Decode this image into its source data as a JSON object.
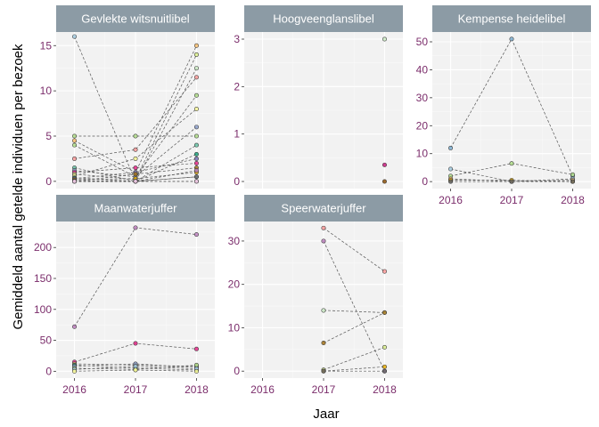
{
  "chart_data": {
    "type": "scatter",
    "xlabel": "Jaar",
    "ylabel": "Gemiddeld aantal getelde individuen per bezoek",
    "x_ticks": [
      "2016",
      "2017",
      "2018"
    ],
    "style": {
      "panel_bg": "#f2f2f2",
      "strip_bg": "#8c9ba5",
      "grid_major": "#ffffff",
      "grid_minor": "#fafafa",
      "tick_color": "#7b2d6b",
      "line_color": "#555555"
    },
    "panels": [
      {
        "title": "Gevlekte witsnuitlibel",
        "ylim": [
          -0.8,
          16.5
        ],
        "y_ticks": [
          0,
          5,
          10,
          15
        ],
        "series": [
          {
            "color": "#a6cee3",
            "points": [
              [
                2016,
                16
              ],
              [
                2017,
                0
              ],
              [
                2018,
                0.5
              ]
            ]
          },
          {
            "color": "#b2df8a",
            "points": [
              [
                2016,
                5
              ],
              [
                2017,
                5
              ],
              [
                2018,
                5
              ]
            ]
          },
          {
            "color": "#fdbf6f",
            "points": [
              [
                2016,
                4.5
              ],
              [
                2017,
                1
              ],
              [
                2018,
                15
              ]
            ]
          },
          {
            "color": "#b2df8a",
            "points": [
              [
                2016,
                4
              ],
              [
                2017,
                0.5
              ],
              [
                2018,
                9.5
              ]
            ]
          },
          {
            "color": "#fb9a99",
            "points": [
              [
                2016,
                2.5
              ],
              [
                2017,
                3.5
              ],
              [
                2018,
                11.5
              ]
            ]
          },
          {
            "color": "#66c2a5",
            "points": [
              [
                2016,
                1.5
              ],
              [
                2017,
                0
              ],
              [
                2018,
                4
              ]
            ]
          },
          {
            "color": "#8da0cb",
            "points": [
              [
                2016,
                1.2
              ],
              [
                2017,
                0.5
              ],
              [
                2018,
                6
              ]
            ]
          },
          {
            "color": "#e7298a",
            "points": [
              [
                2016,
                1
              ],
              [
                2017,
                1.5
              ],
              [
                2018,
                2
              ]
            ]
          },
          {
            "color": "#d9ef8b",
            "points": [
              [
                2016,
                0.8
              ],
              [
                2017,
                0.2
              ],
              [
                2018,
                14
              ]
            ]
          },
          {
            "color": "#ffff99",
            "points": [
              [
                2016,
                0.6
              ],
              [
                2017,
                2.5
              ],
              [
                2018,
                8
              ]
            ]
          },
          {
            "color": "#1b9e77",
            "points": [
              [
                2016,
                0.4
              ],
              [
                2017,
                0
              ],
              [
                2018,
                3
              ]
            ]
          },
          {
            "color": "#7570b3",
            "points": [
              [
                2016,
                0.3
              ],
              [
                2017,
                1
              ],
              [
                2018,
                2.5
              ]
            ]
          },
          {
            "color": "#e6ab02",
            "points": [
              [
                2016,
                0.2
              ],
              [
                2017,
                0.3
              ],
              [
                2018,
                1
              ]
            ]
          },
          {
            "color": "#666666",
            "points": [
              [
                2016,
                0.1
              ],
              [
                2017,
                0
              ],
              [
                2018,
                0.5
              ]
            ]
          },
          {
            "color": "#a6761d",
            "points": [
              [
                2016,
                0
              ],
              [
                2017,
                0.8
              ],
              [
                2018,
                1.5
              ]
            ]
          },
          {
            "color": "#ccebc5",
            "points": [
              [
                2016,
                0
              ],
              [
                2017,
                0
              ],
              [
                2018,
                12.5
              ]
            ]
          },
          {
            "color": "#bc80bd",
            "points": [
              [
                2016,
                0
              ],
              [
                2017,
                0
              ],
              [
                2018,
                1.2
              ]
            ]
          },
          {
            "color": "#80b1d3",
            "points": [
              [
                2016,
                0
              ],
              [
                2017,
                0
              ],
              [
                2018,
                0
              ]
            ]
          },
          {
            "color": "#fccde5",
            "points": [
              [
                2016,
                0
              ],
              [
                2017,
                0
              ],
              [
                2018,
                0
              ]
            ]
          }
        ]
      },
      {
        "title": "Hoogveenglanslibel",
        "ylim": [
          -0.15,
          3.15
        ],
        "y_ticks": [
          0,
          1,
          2,
          3
        ],
        "series": [
          {
            "color": "#ccebc5",
            "points": [
              [
                2018,
                3
              ]
            ]
          },
          {
            "color": "#c51b7d",
            "points": [
              [
                2018,
                0.35
              ]
            ]
          },
          {
            "color": "#8c510a",
            "points": [
              [
                2018,
                0
              ]
            ]
          }
        ]
      },
      {
        "title": "Kempense heidelibel",
        "ylim": [
          -2.5,
          53.5
        ],
        "y_ticks": [
          0,
          10,
          20,
          30,
          40,
          50
        ],
        "series": [
          {
            "color": "#80b1d3",
            "points": [
              [
                2016,
                12
              ],
              [
                2017,
                51
              ],
              [
                2018,
                2
              ]
            ]
          },
          {
            "color": "#a6cee3",
            "points": [
              [
                2016,
                4.5
              ],
              [
                2017,
                0
              ],
              [
                2018,
                1
              ]
            ]
          },
          {
            "color": "#b2df8a",
            "points": [
              [
                2016,
                2
              ],
              [
                2017,
                6.5
              ],
              [
                2018,
                2.5
              ]
            ]
          },
          {
            "color": "#fdbf6f",
            "points": [
              [
                2016,
                1
              ],
              [
                2017,
                0
              ],
              [
                2018,
                0.5
              ]
            ]
          },
          {
            "color": "#e6ab02",
            "points": [
              [
                2016,
                0.5
              ],
              [
                2017,
                0.5
              ],
              [
                2018,
                0
              ]
            ]
          },
          {
            "color": "#666666",
            "points": [
              [
                2016,
                0
              ],
              [
                2017,
                0
              ],
              [
                2018,
                0
              ]
            ]
          }
        ]
      },
      {
        "title": "Maanwaterjuffer",
        "ylim": [
          -11,
          242
        ],
        "y_ticks": [
          0,
          50,
          100,
          150,
          200
        ],
        "series": [
          {
            "color": "#bc80bd",
            "points": [
              [
                2016,
                72
              ],
              [
                2017,
                232
              ],
              [
                2018,
                221
              ]
            ]
          },
          {
            "color": "#e7298a",
            "points": [
              [
                2016,
                15
              ],
              [
                2017,
                45
              ],
              [
                2018,
                36
              ]
            ]
          },
          {
            "color": "#fdbf6f",
            "points": [
              [
                2016,
                12
              ],
              [
                2017,
                10
              ],
              [
                2018,
                8
              ]
            ]
          },
          {
            "color": "#1b9e77",
            "points": [
              [
                2016,
                10
              ],
              [
                2017,
                5
              ],
              [
                2018,
                2
              ]
            ]
          },
          {
            "color": "#8da0cb",
            "points": [
              [
                2016,
                8
              ],
              [
                2017,
                12
              ],
              [
                2018,
                6
              ]
            ]
          },
          {
            "color": "#b2df8a",
            "points": [
              [
                2016,
                5
              ],
              [
                2017,
                3
              ],
              [
                2018,
                10
              ]
            ]
          },
          {
            "color": "#a6cee3",
            "points": [
              [
                2016,
                3
              ],
              [
                2017,
                8
              ],
              [
                2018,
                4
              ]
            ]
          },
          {
            "color": "#ffff99",
            "points": [
              [
                2016,
                0
              ],
              [
                2017,
                2
              ],
              [
                2018,
                0
              ]
            ]
          }
        ]
      },
      {
        "title": "Speerwaterjuffer",
        "ylim": [
          -1.6,
          34.5
        ],
        "y_ticks": [
          0,
          10,
          20,
          30
        ],
        "series": [
          {
            "color": "#fb9a99",
            "points": [
              [
                2017,
                33
              ],
              [
                2018,
                23
              ]
            ]
          },
          {
            "color": "#bc80bd",
            "points": [
              [
                2017,
                30
              ],
              [
                2018,
                0
              ]
            ]
          },
          {
            "color": "#ccebc5",
            "points": [
              [
                2017,
                14
              ],
              [
                2018,
                13.5
              ]
            ]
          },
          {
            "color": "#a6761d",
            "points": [
              [
                2017,
                6.5
              ],
              [
                2018,
                13.5
              ]
            ]
          },
          {
            "color": "#d9ef8b",
            "points": [
              [
                2017,
                0.3
              ],
              [
                2018,
                5.5
              ]
            ]
          },
          {
            "color": "#e6ab02",
            "points": [
              [
                2017,
                0
              ],
              [
                2018,
                1
              ]
            ]
          },
          {
            "color": "#666666",
            "points": [
              [
                2017,
                0
              ],
              [
                2018,
                0
              ]
            ]
          }
        ]
      }
    ]
  }
}
